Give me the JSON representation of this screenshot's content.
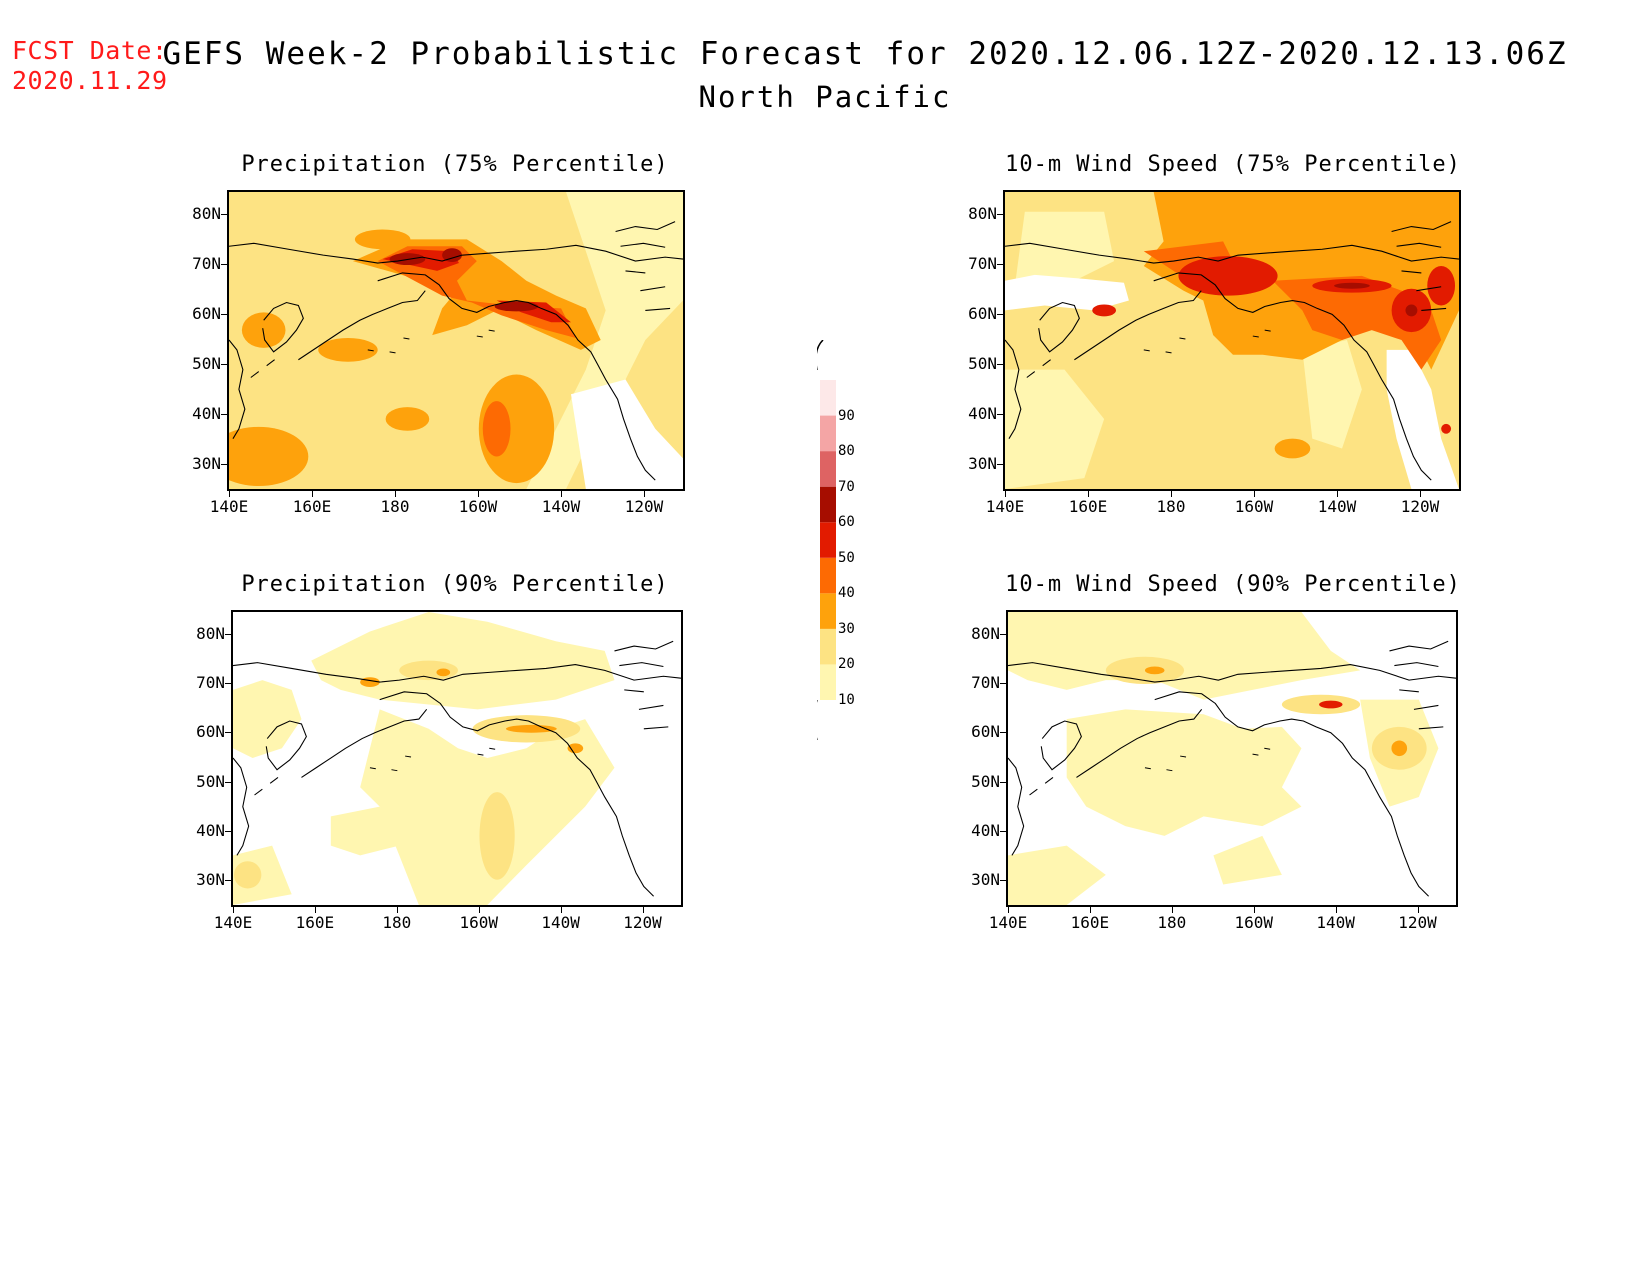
{
  "forecast_date": {
    "label": "FCST Date:",
    "value": "2020.11.29"
  },
  "title": {
    "line1": "GEFS Week-2 Probabilistic Forecast for 2020.12.06.12Z-2020.12.13.06Z",
    "line2": "North Pacific"
  },
  "panels": [
    {
      "title": "Precipitation (75% Percentile)",
      "field": "prcp75"
    },
    {
      "title": "10-m Wind Speed (75% Percentile)",
      "field": "wind75"
    },
    {
      "title": "Precipitation (90% Percentile)",
      "field": "prcp90"
    },
    {
      "title": "10-m Wind Speed (90% Percentile)",
      "field": "wind90"
    }
  ],
  "axes": {
    "lat_labels": [
      "80N",
      "70N",
      "60N",
      "50N",
      "40N",
      "30N"
    ],
    "lon_labels": [
      "140E",
      "160E",
      "180",
      "160W",
      "140W",
      "120W"
    ]
  },
  "colorbar": {
    "levels": [
      "10",
      "20",
      "30",
      "40",
      "50",
      "60",
      "70",
      "80",
      "90"
    ],
    "colors": [
      "#fff6b0",
      "#fde383",
      "#fea20c",
      "#fd6a03",
      "#e21b00",
      "#a60d00",
      "#de6363",
      "#f4a5a5",
      "#fde8e8"
    ]
  }
}
